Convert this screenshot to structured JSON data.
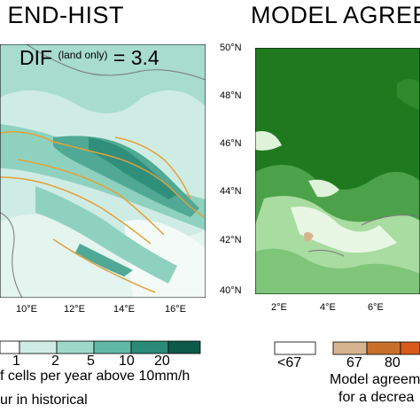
{
  "left_panel": {
    "title": "E END-HIST",
    "dif_label": "DIF",
    "dif_note": "(land only)",
    "dif_eq": "= 3.4",
    "x_ticks": [
      "10°E",
      "12°E",
      "14°E",
      "16°E"
    ],
    "colorbar_ticks": [
      "1",
      "2",
      "5",
      "10",
      "20"
    ],
    "colorbar_colors": [
      "#ffffff",
      "#cfece4",
      "#9ed8c9",
      "#5fb9a6",
      "#2a8c78",
      "#0d5a49"
    ],
    "caption_1": "f cells per year above 10mm/h",
    "caption_2": "ur in historical"
  },
  "right_panel": {
    "title": "MODEL AGREE",
    "y_ticks": [
      "50°N",
      "48°N",
      "46°N",
      "44°N",
      "42°N",
      "40°N"
    ],
    "x_ticks": [
      "2°E",
      "4°E",
      "6°E"
    ],
    "colorbar_ticks": [
      "<67",
      "67",
      "80"
    ],
    "colorbar_colors": [
      "#ffffff",
      "#d6b48f",
      "#c8702a",
      "#d9591b"
    ],
    "caption_1": "Model agreem",
    "caption_2": "for a decrea"
  },
  "colors": {
    "map_teal_light": "#cfece4",
    "map_teal_mid": "#8fd1bf",
    "map_teal_dark": "#2f8f7b",
    "map_green_dark": "#1f7a1f",
    "map_green_light": "#a9dca0",
    "contour_orange": "#e2a13a"
  }
}
